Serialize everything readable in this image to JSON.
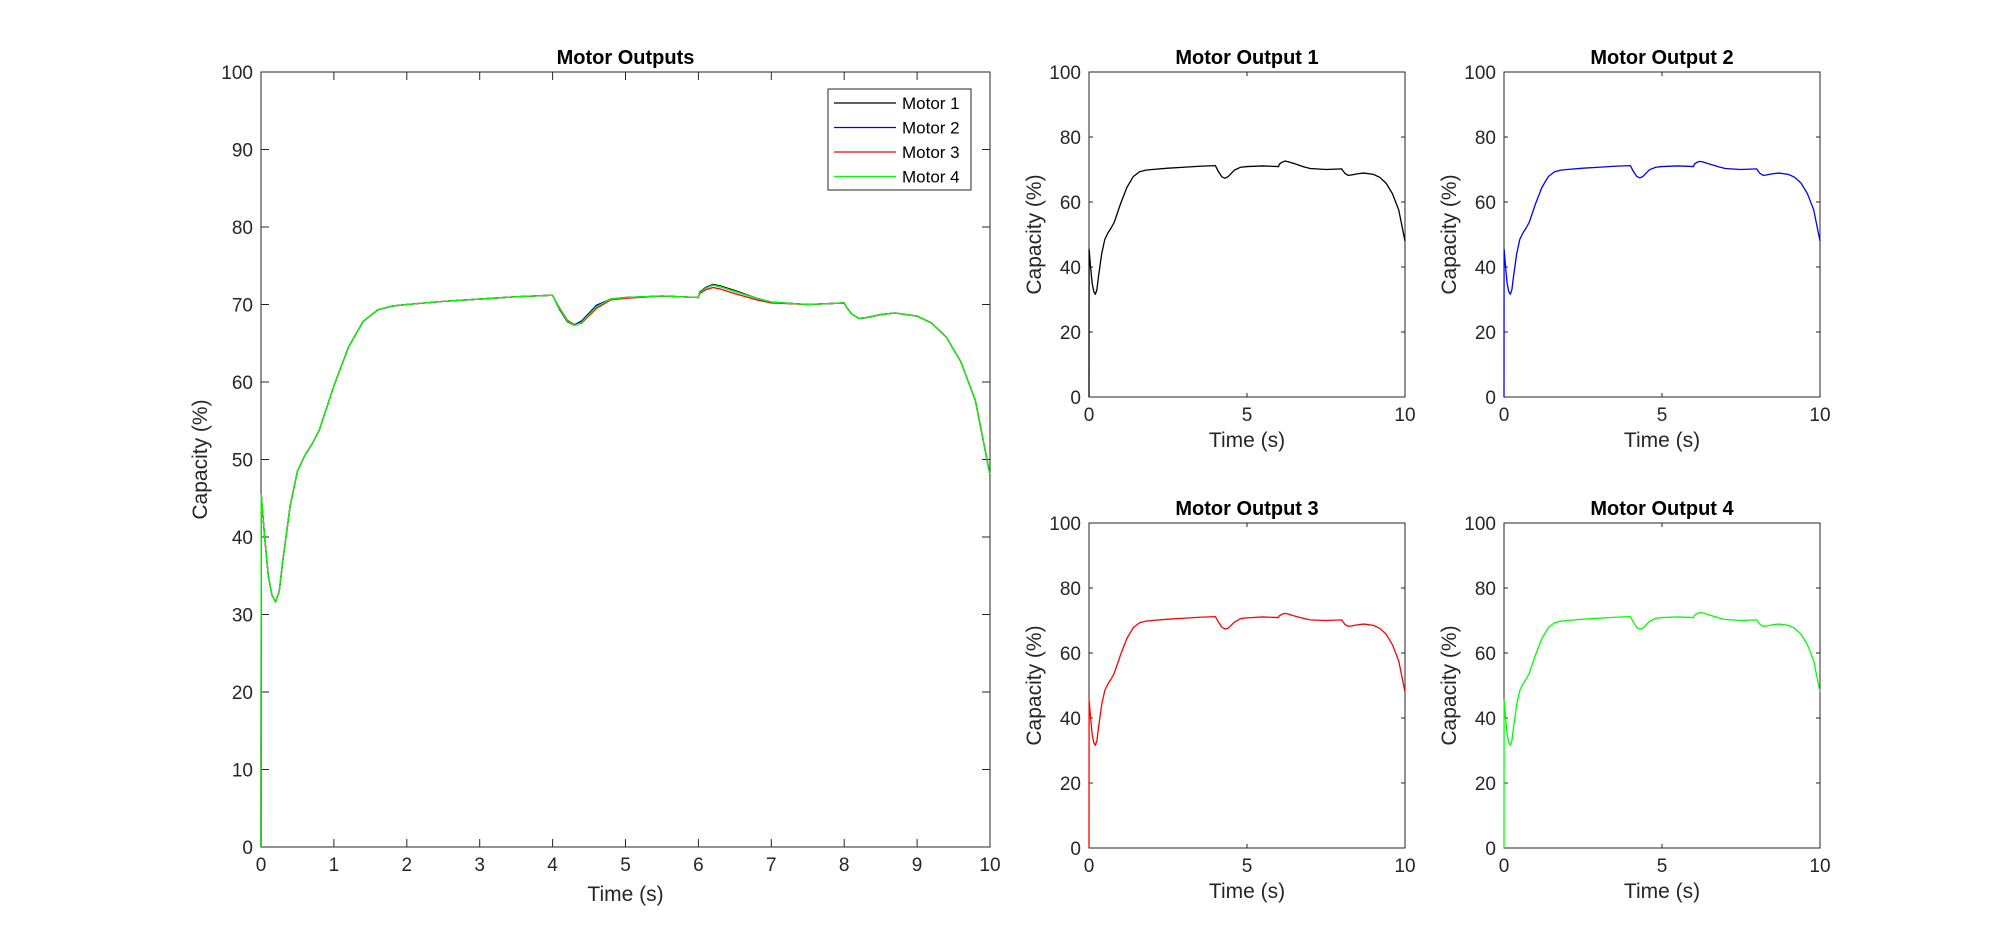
{
  "colors": {
    "motor1": "#000000",
    "motor2": "#0000ff",
    "motor3": "#ff0000",
    "motor4": "#00ff00"
  },
  "chart_data": [
    {
      "type": "line",
      "title": "Motor Outputs",
      "xlabel": "Time (s)",
      "ylabel": "Capacity (%)",
      "xlim": [
        0,
        10
      ],
      "ylim": [
        0,
        100
      ],
      "xticks": [
        0,
        1,
        2,
        3,
        4,
        5,
        6,
        7,
        8,
        9,
        10
      ],
      "yticks": [
        0,
        10,
        20,
        30,
        40,
        50,
        60,
        70,
        80,
        90,
        100
      ],
      "legend": {
        "position": "top-right",
        "entries": [
          "Motor 1",
          "Motor 2",
          "Motor 3",
          "Motor 4"
        ]
      },
      "series": [
        {
          "name": "Motor 1",
          "color": "#000000",
          "x": [
            0,
            0.003,
            0.05,
            0.1,
            0.15,
            0.2,
            0.25,
            0.3,
            0.4,
            0.5,
            0.6,
            0.7,
            0.8,
            1.0,
            1.2,
            1.4,
            1.6,
            1.8,
            2.0,
            2.5,
            3.0,
            3.5,
            4.0,
            4.02,
            4.1,
            4.2,
            4.3,
            4.4,
            4.6,
            4.8,
            5.0,
            5.5,
            6.0,
            6.02,
            6.1,
            6.2,
            6.3,
            6.5,
            6.8,
            7.0,
            7.5,
            8.0,
            8.02,
            8.1,
            8.2,
            8.3,
            8.5,
            8.7,
            9.0,
            9.2,
            9.4,
            9.6,
            9.8,
            10.0
          ],
          "values": [
            0,
            45.5,
            40,
            35,
            32.5,
            31.6,
            33,
            37,
            44,
            48.5,
            50.5,
            52,
            53.8,
            59.5,
            64.5,
            67.8,
            69.3,
            69.8,
            70.0,
            70.4,
            70.7,
            71.0,
            71.2,
            70.8,
            69.3,
            67.8,
            67.3,
            67.8,
            69.8,
            70.7,
            70.9,
            71.1,
            70.9,
            71.6,
            72.2,
            72.6,
            72.4,
            71.8,
            70.8,
            70.3,
            70.0,
            70.2,
            69.8,
            68.8,
            68.2,
            68.3,
            68.7,
            68.9,
            68.5,
            67.6,
            65.8,
            62.6,
            57.6,
            48.0
          ]
        },
        {
          "name": "Motor 2",
          "color": "#0000ff",
          "x": [
            0,
            0.003,
            0.05,
            0.1,
            0.15,
            0.2,
            0.25,
            0.3,
            0.4,
            0.5,
            0.6,
            0.7,
            0.8,
            1.0,
            1.2,
            1.4,
            1.6,
            1.8,
            2.0,
            2.5,
            3.0,
            3.5,
            4.0,
            4.02,
            4.1,
            4.2,
            4.3,
            4.4,
            4.6,
            4.8,
            5.0,
            5.5,
            6.0,
            6.02,
            6.1,
            6.2,
            6.3,
            6.5,
            6.8,
            7.0,
            7.5,
            8.0,
            8.02,
            8.1,
            8.2,
            8.3,
            8.5,
            8.7,
            9.0,
            9.2,
            9.4,
            9.6,
            9.8,
            10.0
          ],
          "values": [
            0,
            45.5,
            40,
            35,
            32.5,
            31.6,
            33,
            37,
            44,
            48.5,
            50.5,
            52,
            53.8,
            59.5,
            64.5,
            67.8,
            69.3,
            69.8,
            70.0,
            70.4,
            70.7,
            71.0,
            71.2,
            70.8,
            69.3,
            67.9,
            67.4,
            67.9,
            69.9,
            70.7,
            70.9,
            71.1,
            70.9,
            71.6,
            72.2,
            72.5,
            72.3,
            71.7,
            70.8,
            70.3,
            70.0,
            70.2,
            69.8,
            68.8,
            68.2,
            68.3,
            68.7,
            68.9,
            68.5,
            67.6,
            65.8,
            62.6,
            57.6,
            48.0
          ]
        },
        {
          "name": "Motor 3",
          "color": "#ff0000",
          "x": [
            0,
            0.003,
            0.05,
            0.1,
            0.15,
            0.2,
            0.25,
            0.3,
            0.4,
            0.5,
            0.6,
            0.7,
            0.8,
            1.0,
            1.2,
            1.4,
            1.6,
            1.8,
            2.0,
            2.5,
            3.0,
            3.5,
            4.0,
            4.02,
            4.1,
            4.2,
            4.3,
            4.4,
            4.6,
            4.8,
            5.0,
            5.5,
            6.0,
            6.02,
            6.1,
            6.2,
            6.3,
            6.5,
            6.8,
            7.0,
            7.5,
            8.0,
            8.02,
            8.1,
            8.2,
            8.3,
            8.5,
            8.7,
            9.0,
            9.2,
            9.4,
            9.6,
            9.8,
            10.0
          ],
          "values": [
            0,
            45.5,
            40,
            35,
            32.5,
            31.6,
            33,
            37,
            44,
            48.5,
            50.5,
            52,
            53.8,
            59.5,
            64.5,
            67.8,
            69.3,
            69.8,
            70.0,
            70.4,
            70.7,
            71.0,
            71.2,
            70.8,
            69.5,
            68.0,
            67.4,
            67.6,
            69.5,
            70.6,
            70.8,
            71.1,
            70.9,
            71.4,
            71.9,
            72.2,
            72.0,
            71.4,
            70.6,
            70.2,
            70.0,
            70.2,
            69.8,
            68.8,
            68.2,
            68.3,
            68.7,
            68.9,
            68.5,
            67.6,
            65.8,
            62.6,
            57.6,
            48.0
          ]
        },
        {
          "name": "Motor 4",
          "color": "#00ff00",
          "x": [
            0,
            0.003,
            0.05,
            0.1,
            0.15,
            0.2,
            0.25,
            0.3,
            0.4,
            0.5,
            0.6,
            0.7,
            0.8,
            1.0,
            1.2,
            1.4,
            1.6,
            1.8,
            2.0,
            2.5,
            3.0,
            3.5,
            4.0,
            4.02,
            4.1,
            4.2,
            4.3,
            4.4,
            4.6,
            4.8,
            5.0,
            5.5,
            6.0,
            6.02,
            6.1,
            6.2,
            6.3,
            6.5,
            6.8,
            7.0,
            7.5,
            8.0,
            8.02,
            8.1,
            8.2,
            8.3,
            8.5,
            8.7,
            9.0,
            9.2,
            9.4,
            9.6,
            9.8,
            10.0
          ],
          "values": [
            0,
            45.5,
            40,
            35,
            32.5,
            31.6,
            33,
            37,
            44,
            48.5,
            50.5,
            52,
            53.8,
            59.5,
            64.5,
            67.8,
            69.3,
            69.8,
            70.0,
            70.4,
            70.7,
            71.0,
            71.2,
            70.8,
            69.4,
            67.9,
            67.3,
            67.7,
            69.7,
            70.7,
            70.9,
            71.1,
            70.9,
            71.5,
            72.1,
            72.5,
            72.3,
            71.7,
            70.8,
            70.3,
            70.0,
            70.2,
            69.8,
            68.8,
            68.2,
            68.3,
            68.7,
            68.9,
            68.5,
            67.6,
            65.8,
            62.6,
            57.6,
            48.0
          ]
        }
      ]
    },
    {
      "type": "line",
      "title": "Motor Output 1",
      "xlabel": "Time (s)",
      "ylabel": "Capacity (%)",
      "xlim": [
        0,
        10
      ],
      "ylim": [
        0,
        100
      ],
      "xticks": [
        0,
        5,
        10
      ],
      "yticks": [
        0,
        20,
        40,
        60,
        80,
        100
      ],
      "series": [
        {
          "name": "Motor 1",
          "color": "#000000",
          "x": [
            0,
            0.003,
            0.05,
            0.1,
            0.15,
            0.2,
            0.25,
            0.3,
            0.4,
            0.5,
            0.6,
            0.7,
            0.8,
            1.0,
            1.2,
            1.4,
            1.6,
            1.8,
            2.0,
            2.5,
            3.0,
            3.5,
            4.0,
            4.02,
            4.1,
            4.2,
            4.3,
            4.4,
            4.6,
            4.8,
            5.0,
            5.5,
            6.0,
            6.02,
            6.1,
            6.2,
            6.3,
            6.5,
            6.8,
            7.0,
            7.5,
            8.0,
            8.02,
            8.1,
            8.2,
            8.3,
            8.5,
            8.7,
            9.0,
            9.2,
            9.4,
            9.6,
            9.8,
            10.0
          ],
          "values": [
            0,
            45.5,
            40,
            35,
            32.5,
            31.6,
            33,
            37,
            44,
            48.5,
            50.5,
            52,
            53.8,
            59.5,
            64.5,
            67.8,
            69.3,
            69.8,
            70.0,
            70.4,
            70.7,
            71.0,
            71.2,
            70.8,
            69.3,
            67.8,
            67.3,
            67.8,
            69.8,
            70.7,
            70.9,
            71.1,
            70.9,
            71.6,
            72.2,
            72.6,
            72.4,
            71.8,
            70.8,
            70.3,
            70.0,
            70.2,
            69.8,
            68.8,
            68.2,
            68.3,
            68.7,
            68.9,
            68.5,
            67.6,
            65.8,
            62.6,
            57.6,
            48.0
          ]
        }
      ]
    },
    {
      "type": "line",
      "title": "Motor Output 2",
      "xlabel": "Time (s)",
      "ylabel": "Capacity (%)",
      "xlim": [
        0,
        10
      ],
      "ylim": [
        0,
        100
      ],
      "xticks": [
        0,
        5,
        10
      ],
      "yticks": [
        0,
        20,
        40,
        60,
        80,
        100
      ],
      "series": [
        {
          "name": "Motor 2",
          "color": "#0000ff",
          "x": [
            0,
            0.003,
            0.05,
            0.1,
            0.15,
            0.2,
            0.25,
            0.3,
            0.4,
            0.5,
            0.6,
            0.7,
            0.8,
            1.0,
            1.2,
            1.4,
            1.6,
            1.8,
            2.0,
            2.5,
            3.0,
            3.5,
            4.0,
            4.02,
            4.1,
            4.2,
            4.3,
            4.4,
            4.6,
            4.8,
            5.0,
            5.5,
            6.0,
            6.02,
            6.1,
            6.2,
            6.3,
            6.5,
            6.8,
            7.0,
            7.5,
            8.0,
            8.02,
            8.1,
            8.2,
            8.3,
            8.5,
            8.7,
            9.0,
            9.2,
            9.4,
            9.6,
            9.8,
            10.0
          ],
          "values": [
            0,
            45.5,
            40,
            35,
            32.5,
            31.6,
            33,
            37,
            44,
            48.5,
            50.5,
            52,
            53.8,
            59.5,
            64.5,
            67.8,
            69.3,
            69.8,
            70.0,
            70.4,
            70.7,
            71.0,
            71.2,
            70.8,
            69.3,
            67.9,
            67.4,
            67.9,
            69.9,
            70.7,
            70.9,
            71.1,
            70.9,
            71.6,
            72.2,
            72.5,
            72.3,
            71.7,
            70.8,
            70.3,
            70.0,
            70.2,
            69.8,
            68.8,
            68.2,
            68.3,
            68.7,
            68.9,
            68.5,
            67.6,
            65.8,
            62.6,
            57.6,
            48.0
          ]
        }
      ]
    },
    {
      "type": "line",
      "title": "Motor Output 3",
      "xlabel": "Time (s)",
      "ylabel": "Capacity (%)",
      "xlim": [
        0,
        10
      ],
      "ylim": [
        0,
        100
      ],
      "xticks": [
        0,
        5,
        10
      ],
      "yticks": [
        0,
        20,
        40,
        60,
        80,
        100
      ],
      "series": [
        {
          "name": "Motor 3",
          "color": "#ff0000",
          "x": [
            0,
            0.003,
            0.05,
            0.1,
            0.15,
            0.2,
            0.25,
            0.3,
            0.4,
            0.5,
            0.6,
            0.7,
            0.8,
            1.0,
            1.2,
            1.4,
            1.6,
            1.8,
            2.0,
            2.5,
            3.0,
            3.5,
            4.0,
            4.02,
            4.1,
            4.2,
            4.3,
            4.4,
            4.6,
            4.8,
            5.0,
            5.5,
            6.0,
            6.02,
            6.1,
            6.2,
            6.3,
            6.5,
            6.8,
            7.0,
            7.5,
            8.0,
            8.02,
            8.1,
            8.2,
            8.3,
            8.5,
            8.7,
            9.0,
            9.2,
            9.4,
            9.6,
            9.8,
            10.0
          ],
          "values": [
            0,
            45.5,
            40,
            35,
            32.5,
            31.6,
            33,
            37,
            44,
            48.5,
            50.5,
            52,
            53.8,
            59.5,
            64.5,
            67.8,
            69.3,
            69.8,
            70.0,
            70.4,
            70.7,
            71.0,
            71.2,
            70.8,
            69.5,
            68.0,
            67.4,
            67.6,
            69.5,
            70.6,
            70.8,
            71.1,
            70.9,
            71.4,
            71.9,
            72.2,
            72.0,
            71.4,
            70.6,
            70.2,
            70.0,
            70.2,
            69.8,
            68.8,
            68.2,
            68.3,
            68.7,
            68.9,
            68.5,
            67.6,
            65.8,
            62.6,
            57.6,
            48.0
          ]
        }
      ]
    },
    {
      "type": "line",
      "title": "Motor Output 4",
      "xlabel": "Time (s)",
      "ylabel": "Capacity (%)",
      "xlim": [
        0,
        10
      ],
      "ylim": [
        0,
        100
      ],
      "xticks": [
        0,
        5,
        10
      ],
      "yticks": [
        0,
        20,
        40,
        60,
        80,
        100
      ],
      "series": [
        {
          "name": "Motor 4",
          "color": "#00ff00",
          "x": [
            0,
            0.003,
            0.05,
            0.1,
            0.15,
            0.2,
            0.25,
            0.3,
            0.4,
            0.5,
            0.6,
            0.7,
            0.8,
            1.0,
            1.2,
            1.4,
            1.6,
            1.8,
            2.0,
            2.5,
            3.0,
            3.5,
            4.0,
            4.02,
            4.1,
            4.2,
            4.3,
            4.4,
            4.6,
            4.8,
            5.0,
            5.5,
            6.0,
            6.02,
            6.1,
            6.2,
            6.3,
            6.5,
            6.8,
            7.0,
            7.5,
            8.0,
            8.02,
            8.1,
            8.2,
            8.3,
            8.5,
            8.7,
            9.0,
            9.2,
            9.4,
            9.6,
            9.8,
            10.0
          ],
          "values": [
            0,
            45.5,
            40,
            35,
            32.5,
            31.6,
            33,
            37,
            44,
            48.5,
            50.5,
            52,
            53.8,
            59.5,
            64.5,
            67.8,
            69.3,
            69.8,
            70.0,
            70.4,
            70.7,
            71.0,
            71.2,
            70.8,
            69.4,
            67.9,
            67.3,
            67.7,
            69.7,
            70.7,
            70.9,
            71.1,
            70.9,
            71.5,
            72.1,
            72.5,
            72.3,
            71.7,
            70.8,
            70.3,
            70.0,
            70.2,
            69.8,
            68.8,
            68.2,
            68.3,
            68.7,
            68.9,
            68.5,
            67.6,
            65.8,
            62.6,
            57.6,
            48.0
          ]
        }
      ]
    }
  ]
}
